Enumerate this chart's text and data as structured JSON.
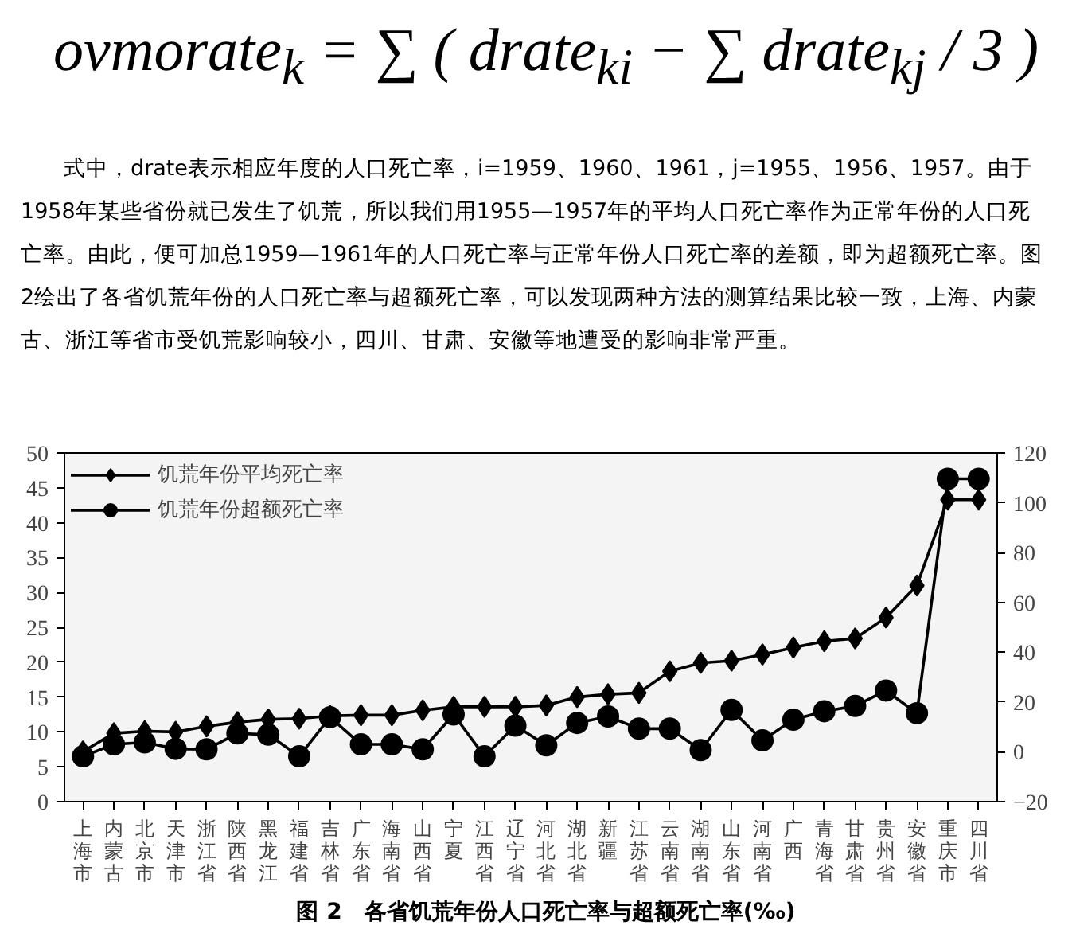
{
  "chart_data": {
    "type": "line",
    "title": "图 2　各省饥荒年份人口死亡率与超额死亡率(‰)",
    "annotations": [
      "ovmorate$_{k}$ = ∑ ( drate$_{ki}$ − ∑ drate$_{kj}$ / 3 )",
      "式中，drate表示相应年度的人口死亡率，i=1959、1960、1961，j=1955、1956、1957。由于1958年某些省份就已发生了饥荒，所以我们用1955—1957年的平均人口死亡率作为正常年份的人口死亡率。由此，便可加总1959—1961年的人口死亡率与正常年份人口死亡率的差额，即为超额死亡率。图2绘出了各省饥荒年份的人口死亡率与超额死亡率，可以发现两种方法的测算结果比较一致，上海、内蒙古、浙江等省市受饥荒影响较小，四川、甘肃、安徽等地遭受的影响非常严重。"
    ],
    "categories": [
      "上海市",
      "内蒙古",
      "北京市",
      "天津市",
      "浙江省",
      "陕西省",
      "黑龙江",
      "福建省",
      "吉林省",
      "广东省",
      "海南省",
      "山西省",
      "宁夏",
      "江西省",
      "辽宁省",
      "河北省",
      "湖北省",
      "新疆",
      "江苏省",
      "云南省",
      "湖南省",
      "山东省",
      "河南省",
      "广西",
      "青海省",
      "甘肃省",
      "贵州省",
      "安徽省",
      "重庆市",
      "四川省"
    ],
    "series": [
      {
        "name": "饥荒年份平均死亡率",
        "color": "#000000",
        "marker": "diamond",
        "values": [
          7.2,
          9.8,
          10.1,
          10.0,
          10.8,
          11.4,
          11.8,
          11.9,
          12.3,
          12.4,
          12.4,
          13.1,
          13.6,
          13.6,
          13.6,
          13.8,
          15.0,
          15.4,
          15.6,
          18.7,
          19.9,
          20.2,
          21.1,
          22.1,
          23.0,
          23.4,
          26.4,
          31.0,
          43.3,
          43.3
        ]
      },
      {
        "name": "饥荒年份超额死亡率",
        "color": "#000000",
        "marker": "circle",
        "axis": "y2",
        "values": [
          -1.8,
          3.0,
          3.8,
          1.2,
          1.0,
          7.4,
          6.9,
          -1.8,
          13.9,
          3.0,
          3.0,
          1.0,
          15.0,
          -1.8,
          10.5,
          2.6,
          11.6,
          14.2,
          9.3,
          9.3,
          0.7,
          16.8,
          4.6,
          12.9,
          16.3,
          18.4,
          24.6,
          15.5,
          109.6,
          109.6
        ]
      }
    ],
    "ylim": [
      0,
      50
    ],
    "yticks": [
      0,
      5,
      10,
      15,
      20,
      25,
      30,
      35,
      40,
      45,
      50
    ],
    "y2lim": [
      -20,
      120
    ],
    "y2ticks": [
      -20,
      0,
      20,
      40,
      60,
      80,
      100,
      120
    ],
    "grid": false,
    "legend": "top left"
  }
}
